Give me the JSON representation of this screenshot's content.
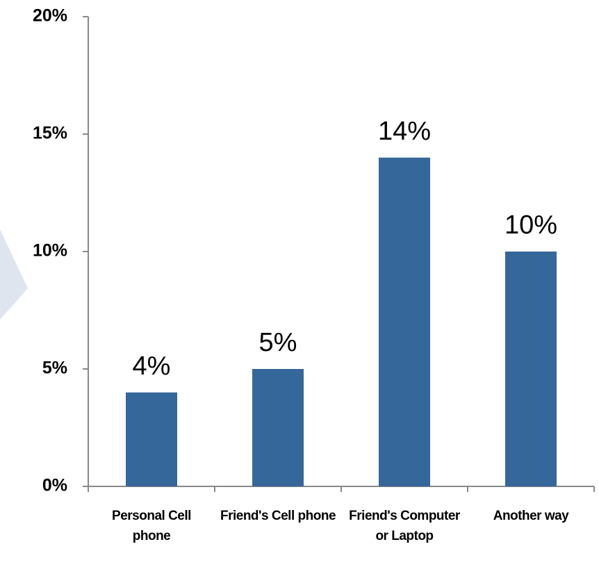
{
  "chart_data": {
    "type": "bar",
    "categories": [
      "Personal Cell phone",
      "Friend's Cell phone",
      "Friend's Computer or Laptop",
      "Another way"
    ],
    "values": [
      4,
      5,
      14,
      10
    ],
    "value_labels": [
      "4%",
      "5%",
      "14%",
      "10%"
    ],
    "color": "#35679a",
    "ylim": [
      0,
      20
    ],
    "yticks": [
      {
        "value": 0,
        "label": "0%"
      },
      {
        "value": 5,
        "label": "5%"
      },
      {
        "value": 10,
        "label": "10%"
      },
      {
        "value": 15,
        "label": "15%"
      },
      {
        "value": 20,
        "label": "20%"
      }
    ],
    "grid": false
  }
}
